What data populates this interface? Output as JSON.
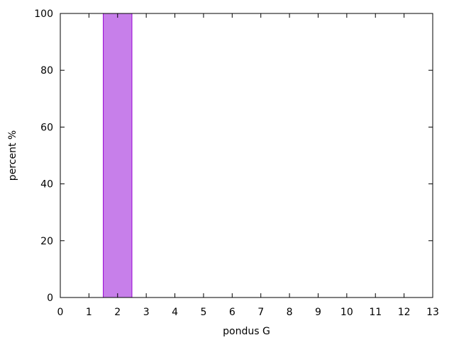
{
  "chart_data": {
    "type": "bar",
    "xlabel": "pondus G",
    "ylabel": "percent %",
    "xlim": [
      0,
      13
    ],
    "ylim": [
      0,
      100
    ],
    "x_ticks": [
      "0",
      "1",
      "2",
      "3",
      "4",
      "5",
      "6",
      "7",
      "8",
      "9",
      "10",
      "11",
      "12",
      "13"
    ],
    "y_ticks": [
      "0",
      "20",
      "40",
      "60",
      "80",
      "100"
    ],
    "bars": [
      {
        "x": 2,
        "value": 100
      }
    ],
    "bar_width": 1,
    "grid": false,
    "colors": {
      "bar_fill": "#c77fea",
      "bar_stroke": "#9400d3",
      "axis": "#000000"
    }
  }
}
